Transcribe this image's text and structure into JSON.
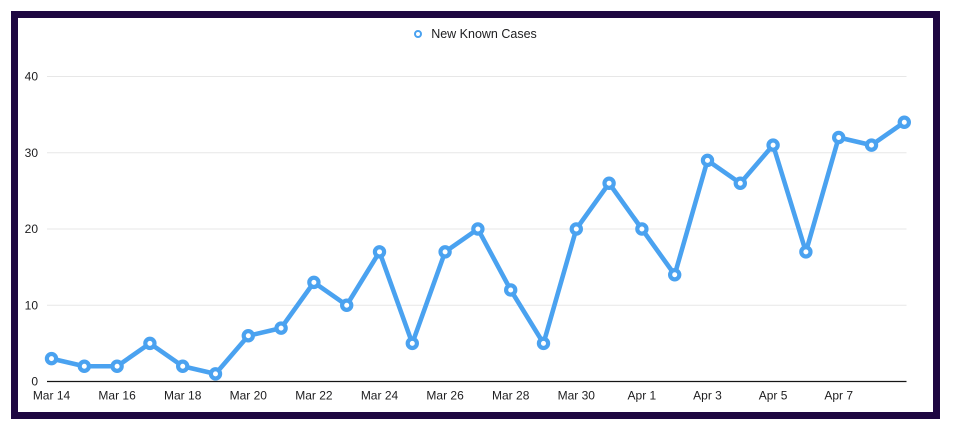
{
  "chart_data": {
    "type": "line",
    "title": "",
    "legend_position": "top-center",
    "grid": "horizontal",
    "categories": [
      "Mar 14",
      "Mar 15",
      "Mar 16",
      "Mar 17",
      "Mar 18",
      "Mar 19",
      "Mar 20",
      "Mar 21",
      "Mar 22",
      "Mar 23",
      "Mar 24",
      "Mar 25",
      "Mar 26",
      "Mar 27",
      "Mar 28",
      "Mar 29",
      "Mar 30",
      "Mar 31",
      "Apr 1",
      "Apr 2",
      "Apr 3",
      "Apr 4",
      "Apr 5",
      "Apr 6",
      "Apr 7",
      "Apr 8",
      "Apr 9"
    ],
    "series": [
      {
        "name": "New Known Cases",
        "marker": "open-circle",
        "color": "#4aa2f0",
        "values": [
          3,
          2,
          2,
          5,
          2,
          1,
          6,
          7,
          13,
          10,
          17,
          5,
          17,
          20,
          12,
          5,
          20,
          26,
          20,
          14,
          29,
          26,
          31,
          17,
          32,
          31,
          34
        ]
      }
    ],
    "x_tick_labels": [
      "Mar 14",
      "Mar 16",
      "Mar 18",
      "Mar 20",
      "Mar 22",
      "Mar 24",
      "Mar 26",
      "Mar 28",
      "Mar 30",
      "Apr 1",
      "Apr 3",
      "Apr 5",
      "Apr 7"
    ],
    "y_ticks": [
      0,
      10,
      20,
      30,
      40
    ],
    "ylim": [
      0,
      40
    ],
    "colors": {
      "series": "#4aa2f0",
      "marker_fill": "#ffffff",
      "grid": "#e7e7e7",
      "axis": "#161616",
      "text": "#1d1d1f",
      "frame_border": "#1e0741",
      "background": "#ffffff"
    }
  }
}
